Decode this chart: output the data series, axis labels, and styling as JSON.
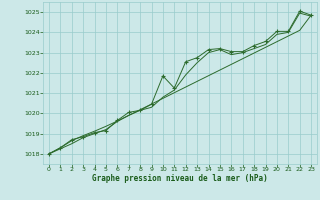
{
  "xlabel": "Graphe pression niveau de la mer (hPa)",
  "x_ticks": [
    0,
    1,
    2,
    3,
    4,
    5,
    6,
    7,
    8,
    9,
    10,
    11,
    12,
    13,
    14,
    15,
    16,
    17,
    18,
    19,
    20,
    21,
    22,
    23
  ],
  "ylim": [
    1017.5,
    1025.5
  ],
  "yticks": [
    1018,
    1019,
    1020,
    1021,
    1022,
    1023,
    1024,
    1025
  ],
  "xlim": [
    -0.5,
    23.5
  ],
  "bg_color": "#cce8e8",
  "grid_color": "#99cccc",
  "line_color": "#2d6b2d",
  "text_color": "#1a5c1a",
  "series1": [
    1018.0,
    1018.3,
    1018.7,
    1018.85,
    1019.05,
    1019.15,
    1019.65,
    1020.05,
    1020.15,
    1020.45,
    1021.85,
    1021.25,
    1022.55,
    1022.75,
    1023.15,
    1023.2,
    1023.05,
    1023.05,
    1023.35,
    1023.55,
    1024.05,
    1024.05,
    1025.05,
    1024.85
  ],
  "series2": [
    1018.0,
    1018.3,
    1018.65,
    1018.9,
    1019.12,
    1019.36,
    1019.62,
    1019.9,
    1020.18,
    1020.46,
    1020.74,
    1021.02,
    1021.3,
    1021.58,
    1021.86,
    1022.14,
    1022.42,
    1022.7,
    1022.98,
    1023.26,
    1023.54,
    1023.82,
    1024.1,
    1024.85
  ],
  "series3": [
    1018.0,
    1018.25,
    1018.5,
    1018.8,
    1019.0,
    1019.2,
    1019.6,
    1019.9,
    1020.15,
    1020.3,
    1020.8,
    1021.15,
    1021.9,
    1022.5,
    1023.0,
    1023.15,
    1022.9,
    1023.0,
    1023.2,
    1023.4,
    1023.9,
    1024.0,
    1024.95,
    1024.8
  ]
}
